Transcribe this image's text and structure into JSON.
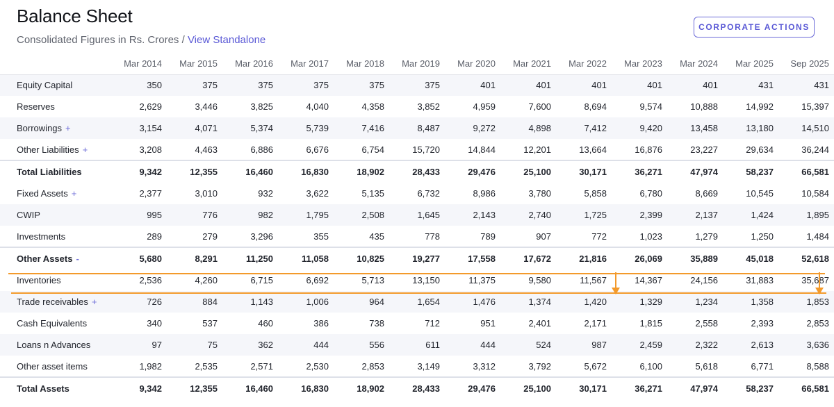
{
  "header": {
    "title": "Balance Sheet",
    "subtitle_prefix": "Consolidated Figures in Rs. Crores / ",
    "view_link": "View Standalone",
    "corporate_actions_label": "CORPORATE ACTIONS"
  },
  "table": {
    "columns": [
      "Mar 2014",
      "Mar 2015",
      "Mar 2016",
      "Mar 2017",
      "Mar 2018",
      "Mar 2019",
      "Mar 2020",
      "Mar 2021",
      "Mar 2022",
      "Mar 2023",
      "Mar 2024",
      "Mar 2025",
      "Sep 2025"
    ],
    "rows": [
      {
        "label": "Equity Capital",
        "expand": "",
        "values": [
          "350",
          "375",
          "375",
          "375",
          "375",
          "375",
          "401",
          "401",
          "401",
          "401",
          "401",
          "431",
          "431"
        ]
      },
      {
        "label": "Reserves",
        "expand": "",
        "values": [
          "2,629",
          "3,446",
          "3,825",
          "4,040",
          "4,358",
          "3,852",
          "4,959",
          "7,600",
          "8,694",
          "9,574",
          "10,888",
          "14,992",
          "15,397"
        ]
      },
      {
        "label": "Borrowings",
        "expand": "+",
        "values": [
          "3,154",
          "4,071",
          "5,374",
          "5,739",
          "7,416",
          "8,487",
          "9,272",
          "4,898",
          "7,412",
          "9,420",
          "13,458",
          "13,180",
          "14,510"
        ]
      },
      {
        "label": "Other Liabilities",
        "expand": "+",
        "values": [
          "3,208",
          "4,463",
          "6,886",
          "6,676",
          "6,754",
          "15,720",
          "14,844",
          "12,201",
          "13,664",
          "16,876",
          "23,227",
          "29,634",
          "36,244"
        ]
      },
      {
        "label": "Total Liabilities",
        "expand": "",
        "values": [
          "9,342",
          "12,355",
          "16,460",
          "16,830",
          "18,902",
          "28,433",
          "29,476",
          "25,100",
          "30,171",
          "36,271",
          "47,974",
          "58,237",
          "66,581"
        ]
      },
      {
        "label": "Fixed Assets",
        "expand": "+",
        "values": [
          "2,377",
          "3,010",
          "932",
          "3,622",
          "5,135",
          "6,732",
          "8,986",
          "3,780",
          "5,858",
          "6,780",
          "8,669",
          "10,545",
          "10,584"
        ]
      },
      {
        "label": "CWIP",
        "expand": "",
        "values": [
          "995",
          "776",
          "982",
          "1,795",
          "2,508",
          "1,645",
          "2,143",
          "2,740",
          "1,725",
          "2,399",
          "2,137",
          "1,424",
          "1,895"
        ]
      },
      {
        "label": "Investments",
        "expand": "",
        "values": [
          "289",
          "279",
          "3,296",
          "355",
          "435",
          "778",
          "789",
          "907",
          "772",
          "1,023",
          "1,279",
          "1,250",
          "1,484"
        ]
      },
      {
        "label": "Other Assets",
        "expand": "-",
        "values": [
          "5,680",
          "8,291",
          "11,250",
          "11,058",
          "10,825",
          "19,277",
          "17,558",
          "17,672",
          "21,816",
          "26,069",
          "35,889",
          "45,018",
          "52,618"
        ]
      },
      {
        "label": "Inventories",
        "expand": "",
        "values": [
          "2,536",
          "4,260",
          "6,715",
          "6,692",
          "5,713",
          "13,150",
          "11,375",
          "9,580",
          "11,567",
          "14,367",
          "24,156",
          "31,883",
          "35,687"
        ]
      },
      {
        "label": "Trade receivables",
        "expand": "+",
        "values": [
          "726",
          "884",
          "1,143",
          "1,006",
          "964",
          "1,654",
          "1,476",
          "1,374",
          "1,420",
          "1,329",
          "1,234",
          "1,358",
          "1,853"
        ]
      },
      {
        "label": "Cash Equivalents",
        "expand": "",
        "values": [
          "340",
          "537",
          "460",
          "386",
          "738",
          "712",
          "951",
          "2,401",
          "2,171",
          "1,815",
          "2,558",
          "2,393",
          "2,853"
        ]
      },
      {
        "label": "Loans n Advances",
        "expand": "",
        "values": [
          "97",
          "75",
          "362",
          "444",
          "556",
          "611",
          "444",
          "524",
          "987",
          "2,459",
          "2,322",
          "2,613",
          "3,636"
        ]
      },
      {
        "label": "Other asset items",
        "expand": "",
        "values": [
          "1,982",
          "2,535",
          "2,571",
          "2,530",
          "2,853",
          "3,149",
          "3,312",
          "3,792",
          "5,672",
          "6,100",
          "5,618",
          "6,771",
          "8,588"
        ]
      },
      {
        "label": "Total Assets",
        "expand": "",
        "values": [
          "9,342",
          "12,355",
          "16,460",
          "16,830",
          "18,902",
          "28,433",
          "29,476",
          "25,100",
          "30,171",
          "36,271",
          "47,974",
          "58,237",
          "66,581"
        ]
      }
    ]
  },
  "colors": {
    "accent": "#5a59d6",
    "highlight": "#f39a2b",
    "stripe": "#f5f6fa"
  }
}
